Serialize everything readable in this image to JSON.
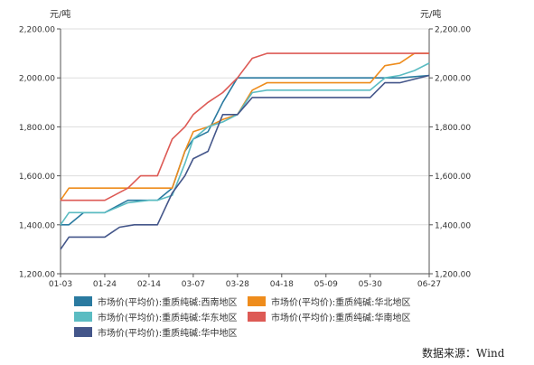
{
  "chart_data": {
    "type": "line",
    "ylabel_left": "元/吨",
    "ylabel_right": "元/吨",
    "ylim": [
      1200,
      2200
    ],
    "yticks": [
      "1,200.00",
      "1,400.00",
      "1,600.00",
      "1,800.00",
      "2,000.00",
      "2,200.00"
    ],
    "ytick_values": [
      1200,
      1400,
      1600,
      1800,
      2000,
      2200
    ],
    "xtick_labels": [
      "01-03",
      "01-24",
      "02-14",
      "03-07",
      "03-28",
      "04-18",
      "05-09",
      "05-30",
      "06-27"
    ],
    "xtick_days": [
      0,
      21,
      42,
      63,
      84,
      105,
      126,
      147,
      175
    ],
    "x_range_days": [
      0,
      175
    ],
    "x_reference_year": 2022,
    "grid": "horizontal",
    "legend_position": "bottom",
    "series": [
      {
        "name": "市场价(平均价):重质纯碱:西南地区",
        "color": "#2a7aa0",
        "dates": [
          "01-03",
          "01-07",
          "01-14",
          "01-24",
          "02-04",
          "02-14",
          "02-18",
          "02-25",
          "03-03",
          "03-07",
          "03-14",
          "03-21",
          "03-28",
          "05-30",
          "06-06",
          "06-13",
          "06-27"
        ],
        "values": [
          1400,
          1400,
          1450,
          1450,
          1500,
          1500,
          1500,
          1550,
          1700,
          1750,
          1780,
          1900,
          2000,
          2000,
          2000,
          2000,
          2010
        ]
      },
      {
        "name": "市场价(平均价):重质纯碱:华北地区",
        "color": "#ee8c1c",
        "dates": [
          "01-03",
          "01-07",
          "01-14",
          "01-24",
          "02-04",
          "02-14",
          "02-18",
          "02-25",
          "03-03",
          "03-07",
          "03-14",
          "03-21",
          "03-28",
          "04-04",
          "04-11",
          "05-30",
          "06-06",
          "06-13",
          "06-20",
          "06-27"
        ],
        "values": [
          1500,
          1550,
          1550,
          1550,
          1550,
          1550,
          1550,
          1550,
          1700,
          1780,
          1800,
          1830,
          1850,
          1950,
          1980,
          1980,
          2050,
          2060,
          2100,
          2100
        ]
      },
      {
        "name": "市场价(平均价):重质纯碱:华东地区",
        "color": "#5bbcc2",
        "dates": [
          "01-03",
          "01-07",
          "01-14",
          "01-24",
          "02-04",
          "02-14",
          "02-18",
          "02-25",
          "03-03",
          "03-07",
          "03-14",
          "03-21",
          "03-28",
          "04-04",
          "04-11",
          "05-30",
          "06-06",
          "06-13",
          "06-20",
          "06-27"
        ],
        "values": [
          1400,
          1450,
          1450,
          1450,
          1490,
          1500,
          1500,
          1520,
          1650,
          1750,
          1800,
          1820,
          1850,
          1940,
          1950,
          1950,
          2000,
          2010,
          2030,
          2060
        ]
      },
      {
        "name": "市场价(平均价):重质纯碱:华南地区",
        "color": "#dd5a55",
        "dates": [
          "01-03",
          "01-07",
          "01-14",
          "01-24",
          "02-04",
          "02-10",
          "02-14",
          "02-18",
          "02-25",
          "03-03",
          "03-07",
          "03-14",
          "03-21",
          "03-28",
          "04-04",
          "04-11",
          "06-27"
        ],
        "values": [
          1500,
          1500,
          1500,
          1500,
          1550,
          1600,
          1600,
          1600,
          1750,
          1800,
          1850,
          1900,
          1940,
          2000,
          2080,
          2100,
          2100
        ]
      },
      {
        "name": "市场价(平均价):重质纯碱:华中地区",
        "color": "#44568a",
        "dates": [
          "01-03",
          "01-07",
          "01-14",
          "01-24",
          "01-31",
          "02-07",
          "02-14",
          "02-18",
          "02-25",
          "03-03",
          "03-07",
          "03-14",
          "03-21",
          "03-28",
          "04-04",
          "05-30",
          "06-06",
          "06-13",
          "06-27"
        ],
        "values": [
          1300,
          1350,
          1350,
          1350,
          1390,
          1400,
          1400,
          1400,
          1530,
          1600,
          1670,
          1700,
          1850,
          1850,
          1920,
          1920,
          1980,
          1980,
          2010
        ]
      }
    ]
  },
  "source_text": "数据来源：Wind"
}
